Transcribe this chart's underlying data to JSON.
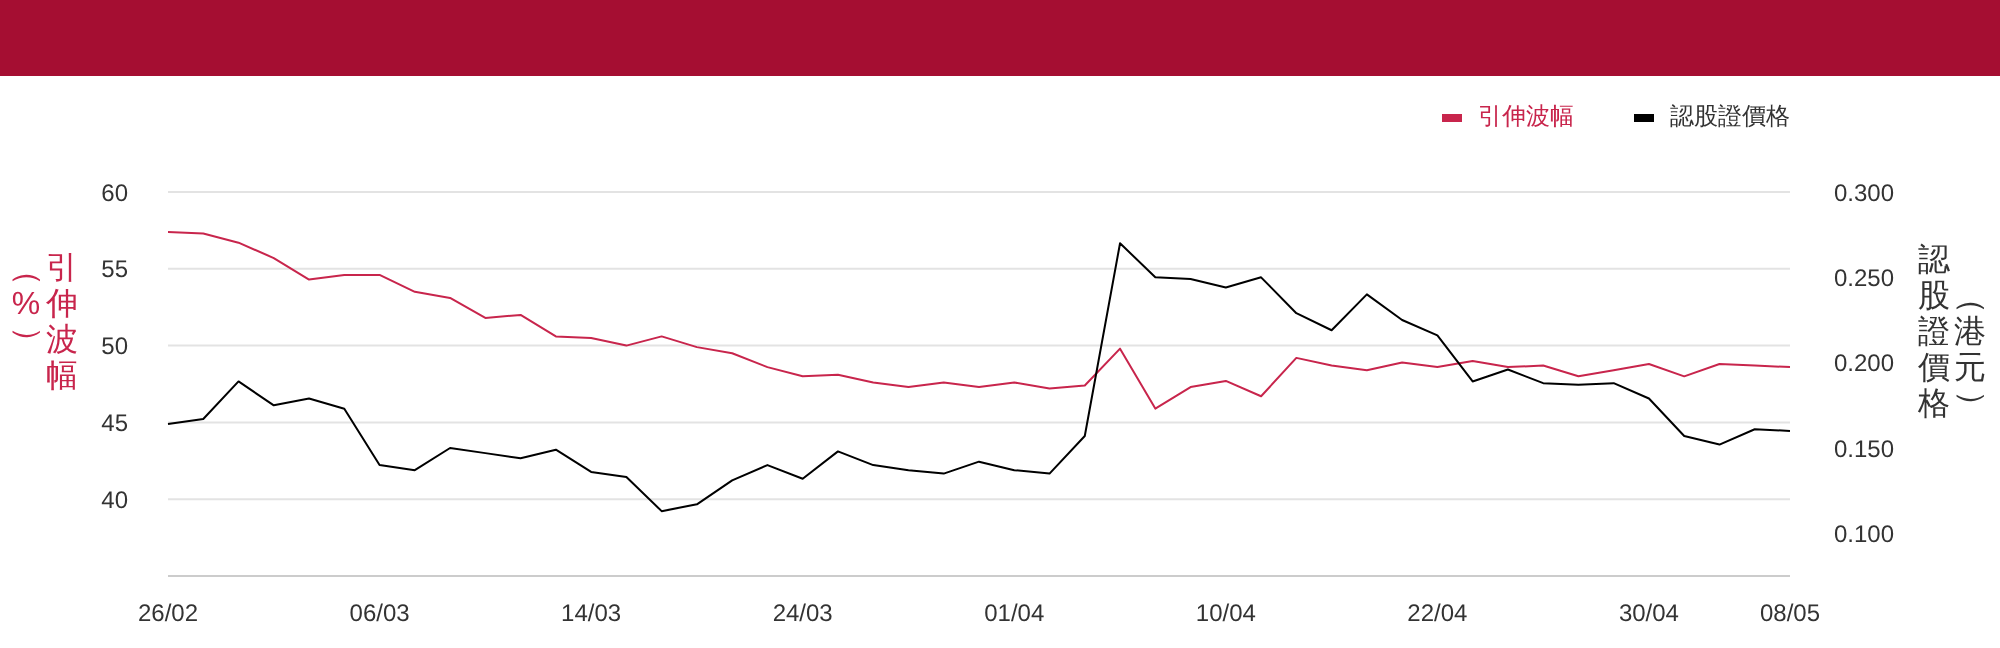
{
  "chart_data": {
    "type": "line",
    "ylabel": "引伸波幅（%）",
    "y2label": "認股證價格（港元）",
    "categories": [
      "26/02",
      null,
      null,
      null,
      null,
      null,
      "06/03",
      null,
      null,
      null,
      null,
      null,
      "14/03",
      null,
      null,
      null,
      null,
      null,
      "24/03",
      null,
      null,
      null,
      null,
      null,
      "01/04",
      null,
      null,
      null,
      null,
      null,
      "10/04",
      null,
      null,
      null,
      null,
      null,
      "22/04",
      null,
      null,
      null,
      null,
      null,
      "30/04",
      null,
      null,
      null,
      "08/05"
    ],
    "series": [
      {
        "name": "引伸波幅",
        "color": "#c8254c",
        "values": [
          57.4,
          57.3,
          56.7,
          55.7,
          54.3,
          54.6,
          54.6,
          53.5,
          53.1,
          51.8,
          52.0,
          50.6,
          50.5,
          50.0,
          50.6,
          49.9,
          49.5,
          48.6,
          48.0,
          48.1,
          47.6,
          47.3,
          47.6,
          47.3,
          47.6,
          47.2,
          47.4,
          49.8,
          45.9,
          47.3,
          47.7,
          46.7,
          49.2,
          48.7,
          48.4,
          48.9,
          48.6,
          49.0,
          48.6,
          48.7,
          48.0,
          48.4,
          48.8,
          48.0,
          48.8,
          48.7,
          48.6
        ]
      },
      {
        "name": "認股證價格",
        "color": "#000000",
        "axis": "y2",
        "values": [
          0.164,
          0.167,
          0.189,
          0.175,
          0.179,
          0.173,
          0.14,
          0.137,
          0.15,
          0.147,
          0.144,
          0.149,
          0.136,
          0.133,
          0.113,
          0.117,
          0.131,
          0.14,
          0.132,
          0.148,
          0.14,
          0.137,
          0.135,
          0.142,
          0.137,
          0.135,
          0.157,
          0.27,
          0.25,
          0.249,
          0.244,
          0.25,
          0.229,
          0.219,
          0.24,
          0.225,
          0.216,
          0.189,
          0.196,
          0.188,
          0.187,
          0.188,
          0.179,
          0.157,
          0.152,
          0.161,
          0.16
        ]
      }
    ],
    "ylim": [
      35,
      60
    ],
    "yticks": [
      40,
      45,
      50,
      55,
      60
    ],
    "y2lim": [
      0.075,
      0.3
    ],
    "y2ticks": [
      {
        "value": 0.1,
        "label": "0.100"
      },
      {
        "value": 0.15,
        "label": "0.150"
      },
      {
        "value": 0.2,
        "label": "0.200"
      },
      {
        "value": 0.25,
        "label": "0.250"
      },
      {
        "value": 0.3,
        "label": "0.300"
      }
    ],
    "grid": "y",
    "legend": "top right",
    "marker": "none",
    "line_style": "solid"
  }
}
